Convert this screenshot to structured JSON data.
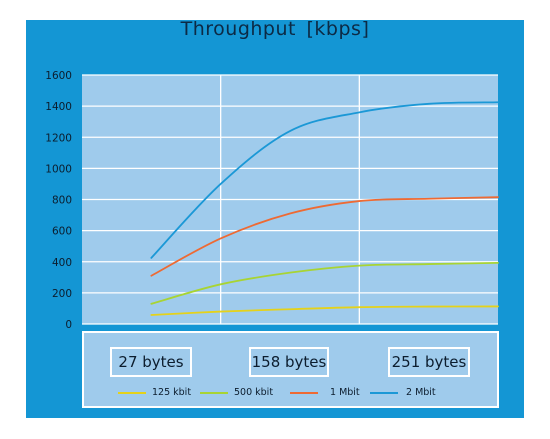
{
  "chart_data": {
    "type": "line",
    "title": "Throughput  [kbps]",
    "xlabel": "",
    "ylabel": "",
    "ylim": [
      0,
      1600
    ],
    "yticks": [
      0,
      200,
      400,
      600,
      800,
      1000,
      1200,
      1400,
      1600
    ],
    "x_categories": [
      "27 bytes",
      "158 bytes",
      "251 bytes"
    ],
    "x_positions": [
      1,
      2,
      3
    ],
    "xlim": [
      0.5,
      3.5
    ],
    "grid": true,
    "legend_placement": "bottom",
    "series": [
      {
        "name": "125 kbit",
        "color": "#e5d21a",
        "x": [
          1,
          1.5,
          2,
          2.5,
          3,
          3.5
        ],
        "y": [
          58,
          80,
          95,
          108,
          112,
          113
        ]
      },
      {
        "name": "500 kbit",
        "color": "#a8d433",
        "x": [
          1,
          1.5,
          2,
          2.5,
          3,
          3.5
        ],
        "y": [
          130,
          255,
          330,
          375,
          385,
          393
        ]
      },
      {
        "name": "1 Mbit",
        "color": "#ee6a33",
        "x": [
          1,
          1.5,
          2,
          2.5,
          3,
          3.5
        ],
        "y": [
          310,
          550,
          710,
          790,
          805,
          815
        ]
      },
      {
        "name": "2 Mbit",
        "color": "#1b98d6",
        "x": [
          1,
          1.5,
          2,
          2.5,
          3,
          3.5
        ],
        "y": [
          425,
          900,
          1240,
          1360,
          1415,
          1425
        ]
      }
    ]
  },
  "colors": {
    "frame": "#1496d4",
    "plot_background": "#9fcbec",
    "grid": "#ffffff",
    "text": "#0c2a45"
  }
}
